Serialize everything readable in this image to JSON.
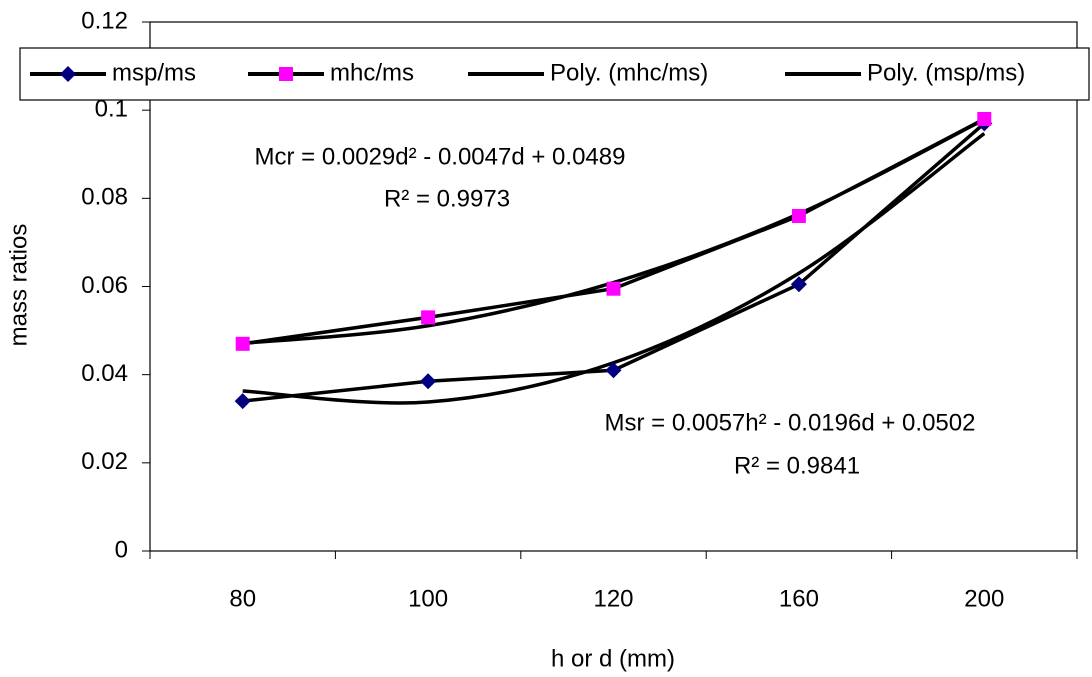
{
  "chart_data": {
    "type": "line",
    "x_label": "h or d (mm)",
    "y_label": "mass ratios",
    "categories": [
      "80",
      "100",
      "120",
      "160",
      "200"
    ],
    "ylim": [
      0,
      0.12
    ],
    "yticks": [
      0,
      0.02,
      0.04,
      0.06,
      0.08,
      0.1,
      0.12
    ],
    "grid": false,
    "legend": "top",
    "series": [
      {
        "name": "msp/ms",
        "color": "#000000",
        "marker": "diamond",
        "marker_color": "#000080",
        "values": [
          0.034,
          0.0385,
          0.041,
          0.0605,
          0.097
        ]
      },
      {
        "name": "mhc/ms",
        "color": "#000000",
        "marker": "square",
        "marker_color": "#ff00ff",
        "values": [
          0.047,
          0.053,
          0.0595,
          0.076,
          0.098
        ]
      },
      {
        "name": "Poly. (mhc/ms)",
        "color": "#000000",
        "smooth": true,
        "values": [
          0.0471,
          0.0511,
          0.0609,
          0.0765,
          0.0979
        ]
      },
      {
        "name": "Poly. (msp/ms)",
        "color": "#000000",
        "smooth": true,
        "values": [
          0.0363,
          0.0338,
          0.0427,
          0.063,
          0.0947
        ]
      }
    ],
    "annotations": [
      "Mcr = 0.0029d² - 0.0047d + 0.0489",
      "R² = 0.9973",
      "Msr = 0.0057h² - 0.0196d + 0.0502",
      "R² = 0.9841"
    ]
  }
}
